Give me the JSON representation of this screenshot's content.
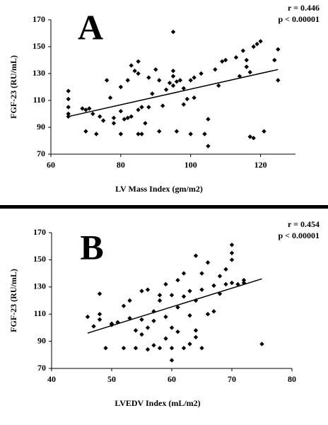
{
  "chart_data": [
    {
      "type": "scatter",
      "panel_label": "A",
      "annotations": [
        "r = 0.446",
        "p < 0.00001"
      ],
      "x_label": "LV Mass Index (gm/m2)",
      "y_label": "FGF-23 (RU/mL)",
      "color": "#000000",
      "xlim": [
        60,
        130
      ],
      "ylim": [
        70,
        170
      ],
      "xticks": [
        60,
        80,
        100,
        120
      ],
      "yticks": [
        70,
        90,
        110,
        130,
        150,
        170
      ],
      "x": [
        65,
        65,
        65,
        65,
        65,
        69,
        70,
        70,
        71,
        72,
        73,
        74,
        75,
        76,
        77,
        78,
        78,
        80,
        80,
        80,
        81,
        82,
        82,
        83,
        83,
        84,
        85,
        85,
        85,
        85,
        86,
        86,
        87,
        88,
        88,
        89,
        90,
        91,
        91,
        92,
        93,
        94,
        95,
        95,
        95,
        95,
        96,
        96,
        97,
        98,
        98,
        99,
        100,
        100,
        101,
        101,
        103,
        104,
        105,
        105,
        107,
        108,
        109,
        110,
        113,
        114,
        115,
        116,
        116,
        117,
        117,
        118,
        118,
        119,
        120,
        121,
        124,
        125,
        125
      ],
      "y": [
        117,
        111,
        105,
        100,
        98,
        104,
        103,
        87,
        104,
        100,
        85,
        98,
        95,
        125,
        112,
        97,
        93,
        102,
        85,
        120,
        96,
        97,
        125,
        98,
        136,
        132,
        139,
        130,
        103,
        85,
        105,
        85,
        93,
        127,
        105,
        115,
        133,
        125,
        87,
        106,
        118,
        123,
        161,
        132,
        128,
        121,
        124,
        87,
        125,
        107,
        119,
        111,
        85,
        125,
        127,
        112,
        130,
        85,
        96,
        76,
        133,
        121,
        139,
        140,
        142,
        128,
        147,
        140,
        135,
        131,
        83,
        150,
        82,
        152,
        154,
        87,
        140,
        148,
        125
      ],
      "trend_line": {
        "x": [
          65,
          125
        ],
        "y": [
          98,
          133
        ]
      }
    },
    {
      "type": "scatter",
      "panel_label": "B",
      "annotations": [
        "r = 0.454",
        "p < 0.00001"
      ],
      "x_label": "LVEDV Index (mL/m2)",
      "y_label": "FGF-23 (RU/mL)",
      "color": "#000000",
      "xlim": [
        40,
        80
      ],
      "ylim": [
        70,
        170
      ],
      "xticks": [
        40,
        50,
        60,
        70,
        80
      ],
      "yticks": [
        70,
        90,
        110,
        130,
        150,
        170
      ],
      "x": [
        46,
        47,
        48,
        48,
        48,
        49,
        50,
        50,
        51,
        52,
        52,
        53,
        53,
        54,
        54,
        55,
        55,
        55,
        56,
        56,
        56,
        57,
        57,
        57,
        58,
        58,
        58,
        59,
        59,
        59,
        60,
        60,
        60,
        60,
        61,
        61,
        61,
        62,
        62,
        62,
        63,
        63,
        63,
        64,
        64,
        64,
        64,
        65,
        65,
        65,
        66,
        66,
        67,
        67,
        68,
        68,
        69,
        69,
        70,
        70,
        70,
        70,
        71,
        72,
        72,
        75
      ],
      "y": [
        108,
        101,
        125,
        110,
        106,
        85,
        103,
        102,
        104,
        85,
        116,
        107,
        120,
        98,
        85,
        127,
        106,
        95,
        128,
        100,
        84,
        112,
        105,
        87,
        124,
        120,
        85,
        132,
        108,
        92,
        124,
        100,
        85,
        76,
        135,
        115,
        97,
        140,
        123,
        85,
        127,
        109,
        88,
        153,
        120,
        98,
        93,
        140,
        128,
        85,
        110,
        148,
        131,
        112,
        138,
        125,
        143,
        132,
        161,
        155,
        150,
        133,
        132,
        135,
        133,
        88
      ],
      "trend_line": {
        "x": [
          46,
          75
        ],
        "y": [
          96,
          136
        ]
      }
    }
  ]
}
